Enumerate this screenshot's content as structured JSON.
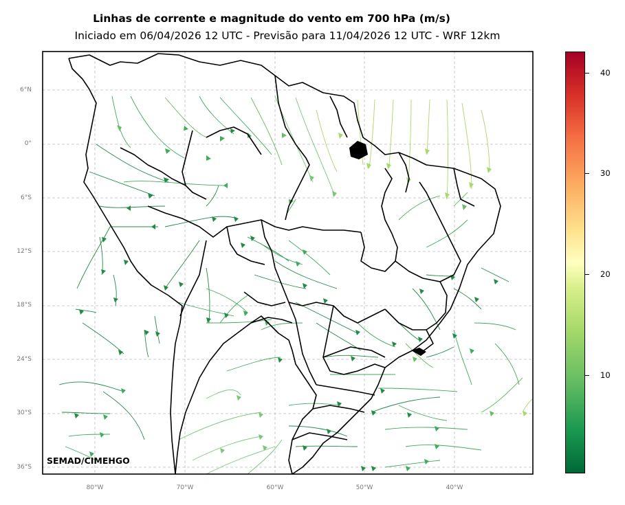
{
  "header": {
    "title": "Linhas de corrente e magnitude do vento em 700 hPa (m/s)",
    "subtitle": "Iniciado em 06/04/2026 12 UTC - Previsão para 11/04/2026 12 UTC - WRF 12km"
  },
  "credit": "SEMAD/CIMEHGO",
  "axes": {
    "lat_labels": [
      "6°N",
      "0°",
      "6°S",
      "12°S",
      "18°S",
      "24°S",
      "30°S",
      "36°S"
    ],
    "lon_labels": [
      "80°W",
      "70°W",
      "60°W",
      "50°W",
      "40°W"
    ]
  },
  "colorbar": {
    "ticks": [
      "40",
      "30",
      "20",
      "10"
    ],
    "colors": [
      "#006837",
      "#1a9850",
      "#66bd63",
      "#a6d96a",
      "#d9ef8b",
      "#ffffbf",
      "#fee08b",
      "#fdae61",
      "#f46d43",
      "#d73027",
      "#a50026"
    ]
  }
}
